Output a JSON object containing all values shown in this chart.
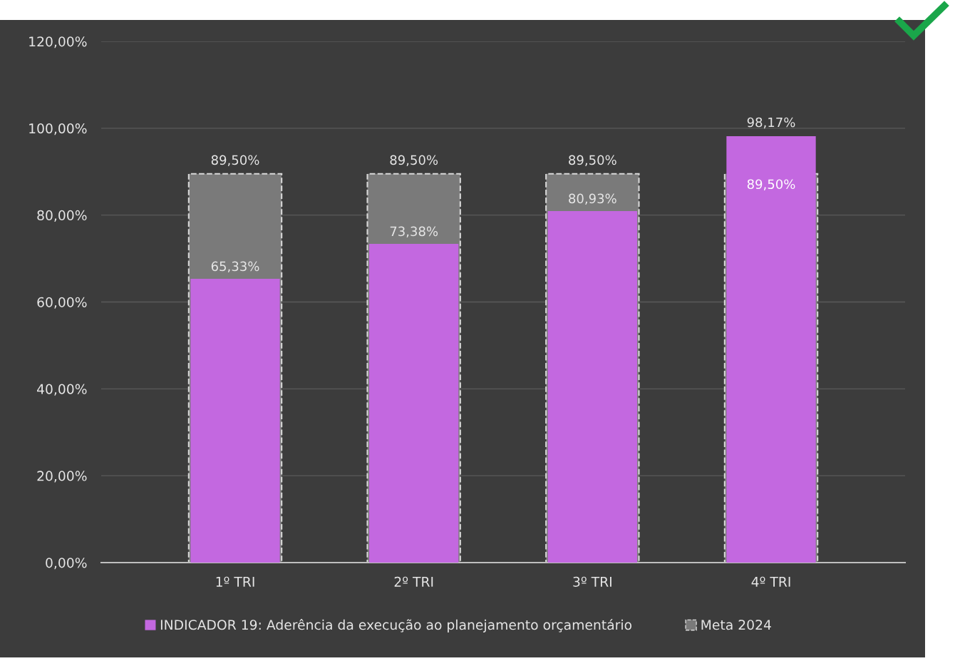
{
  "chart_data": {
    "type": "bar",
    "categories": [
      "1º TRI",
      "2º TRI",
      "3º TRI",
      "4º TRI"
    ],
    "series": [
      {
        "name": "Meta 2024",
        "color": "#7a7a7a",
        "values": [
          89.5,
          89.5,
          89.5,
          89.5
        ],
        "value_labels": [
          "89,50%",
          "89,50%",
          "89,50%",
          "89,50%"
        ],
        "line_style": "dashed"
      },
      {
        "name": "INDICADOR 19: Aderência da execução ao planejamento orçamentário",
        "color": "#c368e0",
        "values": [
          65.33,
          73.38,
          80.93,
          98.17
        ],
        "value_labels": [
          "65,33%",
          "73,38%",
          "80,93%",
          "98,17%"
        ]
      }
    ],
    "ylim": [
      0,
      120
    ],
    "yticks": [
      {
        "value": 0,
        "label": "0,00%"
      },
      {
        "value": 20,
        "label": "20,00%"
      },
      {
        "value": 40,
        "label": "40,00%"
      },
      {
        "value": 60,
        "label": "60,00%"
      },
      {
        "value": 80,
        "label": "80,00%"
      },
      {
        "value": 100,
        "label": "100,00%"
      },
      {
        "value": 120,
        "label": "120,00%"
      }
    ],
    "grid": "y",
    "legend": "bottom"
  }
}
